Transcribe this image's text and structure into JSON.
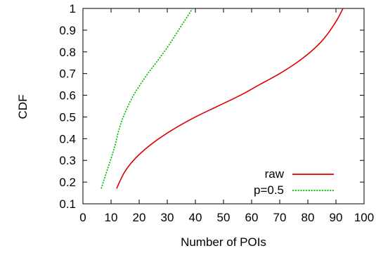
{
  "chart_data": {
    "type": "line",
    "title": "",
    "xlabel": "Number of POIs",
    "ylabel": "CDF",
    "xlim": [
      0,
      100
    ],
    "ylim": [
      0.1,
      1
    ],
    "xticks": [
      "0",
      "10",
      "20",
      "30",
      "40",
      "50",
      "60",
      "70",
      "80",
      "90",
      "100"
    ],
    "yticks": [
      "0.1",
      "0.2",
      "0.3",
      "0.4",
      "0.5",
      "0.6",
      "0.7",
      "0.8",
      "0.9",
      "1"
    ],
    "grid": false,
    "legend_position": "bottom-right",
    "series": [
      {
        "name": "raw",
        "color": "#e00000",
        "style": "solid",
        "points": [
          [
            12,
            0.17
          ],
          [
            13,
            0.2
          ],
          [
            15,
            0.25
          ],
          [
            18,
            0.3
          ],
          [
            22,
            0.35
          ],
          [
            27,
            0.4
          ],
          [
            33,
            0.45
          ],
          [
            40,
            0.5
          ],
          [
            48,
            0.55
          ],
          [
            56,
            0.6
          ],
          [
            63,
            0.65
          ],
          [
            70,
            0.7
          ],
          [
            76,
            0.75
          ],
          [
            81,
            0.8
          ],
          [
            85,
            0.85
          ],
          [
            88,
            0.9
          ],
          [
            90.5,
            0.95
          ],
          [
            92.5,
            1.0
          ]
        ]
      },
      {
        "name": "p=0.5",
        "color": "#00bb00",
        "style": "dashed",
        "points": [
          [
            6.5,
            0.17
          ],
          [
            8.5,
            0.25
          ],
          [
            11,
            0.35
          ],
          [
            13,
            0.45
          ],
          [
            15,
            0.52
          ],
          [
            18,
            0.6
          ],
          [
            22,
            0.68
          ],
          [
            26,
            0.75
          ],
          [
            30,
            0.82
          ],
          [
            34,
            0.9
          ],
          [
            37,
            0.96
          ],
          [
            39,
            1.0
          ]
        ]
      }
    ]
  }
}
